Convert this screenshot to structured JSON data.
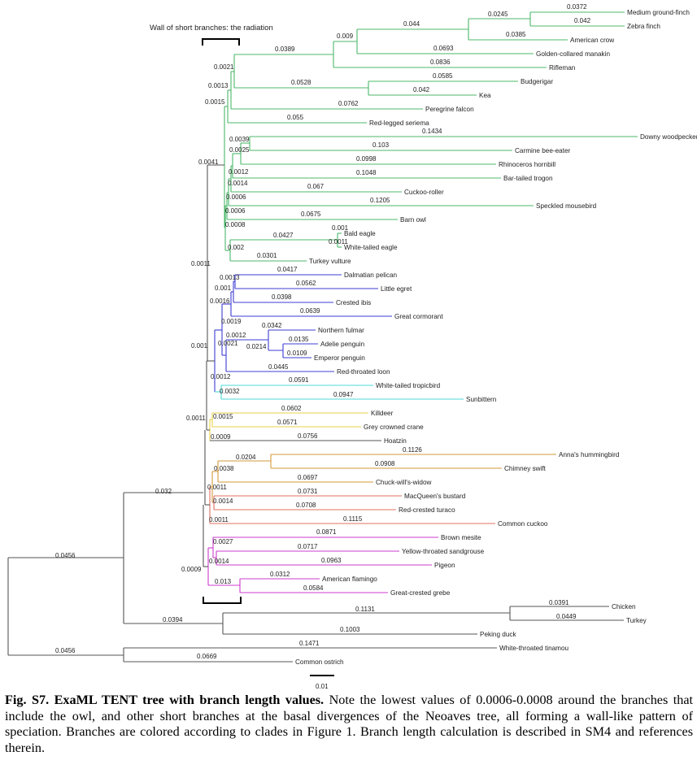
{
  "annotation": "Wall of short branches: the radiation",
  "scale_bar": "0.01",
  "caption": {
    "label": "Fig. S7. ExaML TENT tree with branch length values.",
    "text": "Note the lowest values of 0.0006-0.0008 around the branches that include the owl, and other short branches at the basal divergences of the Neoaves tree, all forming a wall-like pattern of speciation. Branches are colored according to clades in Figure 1. Branch length calculation is described in SM4 and references therein."
  },
  "colors": {
    "green": "#4cb86a",
    "blue": "#3c3cd6",
    "cyan": "#4fd8d8",
    "yellow": "#e8d24a",
    "orange": "#d69a3c",
    "red": "#e07060",
    "magenta": "#cc3dcc",
    "gray": "#555555"
  },
  "taxa": [
    "Medium ground-finch",
    "Zebra finch",
    "American crow",
    "Golden-collared manakin",
    "Rifleman",
    "Budgerigar",
    "Kea",
    "Peregrine falcon",
    "Red-legged seriema",
    "Downy woodpecker",
    "Carmine bee-eater",
    "Rhinoceros hornbill",
    "Bar-tailed trogon",
    "Cuckoo-roller",
    "Speckled mousebird",
    "Barn owl",
    "Bald eagle",
    "White-tailed eagle",
    "Turkey vulture",
    "Dalmatian pelican",
    "Little egret",
    "Crested ibis",
    "Great cormorant",
    "Northern fulmar",
    "Adelie penguin",
    "Emperor penguin",
    "Red-throated loon",
    "White-tailed tropicbird",
    "Sunbittern",
    "Killdeer",
    "Grey crowned crane",
    "Hoatzin",
    "Anna's hummingbird",
    "Chimney swift",
    "Chuck-will's-widow",
    "MacQueen's bustard",
    "Red-crested turaco",
    "Common cuckoo",
    "Brown mesite",
    "Yellow-throated sandgrouse",
    "Pigeon",
    "American flamingo",
    "Great-crested grebe",
    "Chicken",
    "Turkey",
    "Peking duck",
    "White-throated tinamou",
    "Common ostrich"
  ],
  "branch_labels": [
    "0.0372",
    "0.0245",
    "0.042",
    "0.044",
    "0.009",
    "0.0385",
    "0.0389",
    "0.0693",
    "0.0021",
    "0.0836",
    "0.0585",
    "0.0013",
    "0.0528",
    "0.042",
    "0.0015",
    "0.0762",
    "0.055",
    "0.1434",
    "0.0039",
    "0.103",
    "0.0025",
    "0.0998",
    "0.0041",
    "0.0012",
    "0.1048",
    "0.0014",
    "0.067",
    "0.0006",
    "0.1205",
    "0.0006",
    "0.0675",
    "0.0008",
    "0.001",
    "0.0427",
    "0.0011",
    "0.002",
    "0.0301",
    "0.0011",
    "0.0417",
    "0.0013",
    "0.0562",
    "0.001",
    "0.0398",
    "0.0016",
    "0.0639",
    "0.0019",
    "0.0342",
    "0.0012",
    "0.0135",
    "0.0021",
    "0.0214",
    "0.0109",
    "0.001",
    "0.0445",
    "0.0012",
    "0.0591",
    "0.0032",
    "0.0947",
    "0.0602",
    "0.0015",
    "0.0571",
    "0.0011",
    "0.0009",
    "0.0756",
    "0.1126",
    "0.0204",
    "0.0908",
    "0.0038",
    "0.0697",
    "0.032",
    "0.0011",
    "0.0731",
    "0.0014",
    "0.0708",
    "0.0011",
    "0.1115",
    "0.0871",
    "0.0027",
    "0.0717",
    "0.0456",
    "0.0014",
    "0.0963",
    "0.0009",
    "0.0312",
    "0.013",
    "0.0584",
    "0.0391",
    "0.1131",
    "0.0394",
    "0.0449",
    "0.1003",
    "0.1471",
    "0.0456",
    "0.0669"
  ]
}
